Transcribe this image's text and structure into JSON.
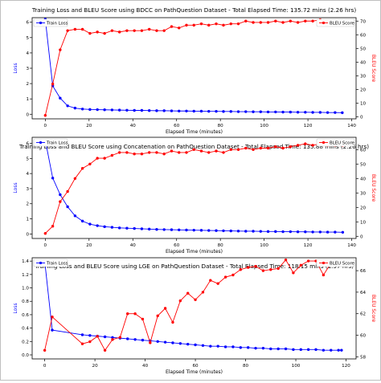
{
  "figure": {
    "frame_color": "#bfbfbf"
  },
  "colors": {
    "loss": "#0000ff",
    "bleu": "#ff0000",
    "axis": "#000000"
  },
  "chart_data": [
    {
      "type": "line",
      "title": "Training Loss and BLEU Score using BDCC on PathQuestion Dataset - Total Elapsed Time: 135.72 mins (2.26 hrs)",
      "xlabel": "Elapsed Time (minutes)",
      "ylabel_left": "Loss",
      "ylabel_right": "BLEU Score",
      "xlim": [
        -6,
        142
      ],
      "ylim_left": [
        -0.3,
        6.3
      ],
      "ylim_right": [
        -1.5,
        72.5
      ],
      "xticks": [
        0,
        20,
        40,
        60,
        80,
        100,
        120,
        140
      ],
      "yticks_left": [
        0,
        1,
        2,
        3,
        4,
        5,
        6
      ],
      "yticks_right": [
        0,
        10,
        20,
        30,
        40,
        50,
        60,
        70
      ],
      "legend": {
        "left": {
          "label": "Train Loss",
          "position": "upper-left"
        },
        "right": {
          "label": "BLEU Score",
          "position": "upper-right"
        }
      },
      "series": [
        {
          "name": "Train Loss",
          "axis": "left",
          "color": "#0000ff",
          "x": [
            0,
            3.4,
            6.8,
            10.2,
            13.6,
            17,
            20.4,
            23.8,
            27.1,
            30.5,
            33.9,
            37.3,
            40.7,
            44.1,
            47.5,
            50.9,
            54.3,
            57.7,
            61.1,
            64.5,
            67.9,
            71.3,
            74.7,
            78.1,
            81.4,
            84.8,
            88.2,
            91.6,
            95,
            98.4,
            101.8,
            105.2,
            108.6,
            112,
            115.4,
            118.8,
            122.2,
            125.6,
            129,
            132.4,
            135.7
          ],
          "y": [
            6.2,
            1.85,
            1.05,
            0.55,
            0.4,
            0.34,
            0.31,
            0.3,
            0.29,
            0.28,
            0.27,
            0.26,
            0.25,
            0.25,
            0.24,
            0.23,
            0.23,
            0.22,
            0.21,
            0.21,
            0.2,
            0.2,
            0.19,
            0.19,
            0.18,
            0.18,
            0.17,
            0.17,
            0.16,
            0.16,
            0.15,
            0.15,
            0.14,
            0.14,
            0.13,
            0.13,
            0.12,
            0.12,
            0.11,
            0.11,
            0.1
          ]
        },
        {
          "name": "BLEU Score",
          "axis": "right",
          "color": "#ff0000",
          "x": [
            0,
            3.4,
            6.8,
            10.2,
            13.6,
            17,
            20.4,
            23.8,
            27.1,
            30.5,
            33.9,
            37.3,
            40.7,
            44.1,
            47.5,
            50.9,
            54.3,
            57.7,
            61.1,
            64.5,
            67.9,
            71.3,
            74.7,
            78.1,
            81.4,
            84.8,
            88.2,
            91.6,
            95,
            98.4,
            101.8,
            105.2,
            108.6,
            112,
            115.4,
            118.8,
            122.2,
            125.6,
            129,
            132.4,
            135.7
          ],
          "y": [
            1,
            24,
            49,
            63,
            64,
            64,
            61,
            62,
            61,
            63,
            62,
            63,
            63,
            63,
            64,
            63,
            63,
            66,
            65,
            67,
            67,
            68,
            67,
            68,
            67,
            68,
            68,
            70,
            69,
            69,
            69,
            70,
            69,
            70,
            69,
            70,
            70,
            71,
            70,
            70,
            70
          ]
        }
      ]
    },
    {
      "type": "line",
      "title": "Training Loss and BLEU Score using Concatenation on PathQuestion Dataset - Total Elapsed Time: 135.88 mins (2.26 hrs)",
      "xlabel": "Elapsed Time (minutes)",
      "ylabel_left": "Loss",
      "ylabel_right": "BLEU Score",
      "xlim": [
        -6,
        142
      ],
      "ylim_left": [
        -0.3,
        6.4
      ],
      "ylim_right": [
        -1.5,
        68.5
      ],
      "xticks": [
        0,
        20,
        40,
        60,
        80,
        100,
        120,
        140
      ],
      "yticks_left": [
        0,
        1,
        2,
        3,
        4,
        5,
        6
      ],
      "yticks_right": [
        0,
        10,
        20,
        30,
        40,
        50,
        60
      ],
      "legend": {
        "left": {
          "label": "Train Loss",
          "position": "upper-left"
        },
        "right": {
          "label": "BLEU Score",
          "position": "upper-right"
        }
      },
      "series": [
        {
          "name": "Train Loss",
          "axis": "left",
          "color": "#0000ff",
          "x": [
            0,
            3.4,
            6.8,
            10.2,
            13.6,
            17,
            20.4,
            23.8,
            27.1,
            30.5,
            33.9,
            37.3,
            40.7,
            44.1,
            47.5,
            50.9,
            54.3,
            57.7,
            61.1,
            64.5,
            67.9,
            71.3,
            74.7,
            78.1,
            81.4,
            84.8,
            88.2,
            91.6,
            95,
            98.4,
            101.8,
            105.2,
            108.6,
            112,
            115.4,
            118.8,
            122.2,
            125.6,
            129,
            132.4,
            135.9
          ],
          "y": [
            6.2,
            3.7,
            2.6,
            1.8,
            1.2,
            0.85,
            0.65,
            0.55,
            0.48,
            0.44,
            0.4,
            0.38,
            0.36,
            0.34,
            0.32,
            0.3,
            0.29,
            0.28,
            0.27,
            0.26,
            0.25,
            0.24,
            0.23,
            0.22,
            0.21,
            0.2,
            0.19,
            0.18,
            0.18,
            0.17,
            0.16,
            0.16,
            0.15,
            0.15,
            0.14,
            0.14,
            0.13,
            0.13,
            0.12,
            0.12,
            0.11
          ]
        },
        {
          "name": "BLEU Score",
          "axis": "right",
          "color": "#ff0000",
          "x": [
            0,
            3.4,
            6.8,
            10.2,
            13.6,
            17,
            20.4,
            23.8,
            27.1,
            30.5,
            33.9,
            37.3,
            40.7,
            44.1,
            47.5,
            50.9,
            54.3,
            57.7,
            61.1,
            64.5,
            67.9,
            71.3,
            74.7,
            78.1,
            81.4,
            84.8,
            88.2,
            91.6,
            95,
            98.4,
            101.8,
            105.2,
            108.6,
            112,
            115.4,
            118.8,
            122.2,
            125.6,
            129,
            132.4,
            135.9
          ],
          "y": [
            2,
            7,
            24,
            31,
            40,
            47,
            50,
            54,
            54,
            56,
            58,
            58,
            57,
            57,
            58,
            58,
            57,
            59,
            58,
            58,
            60,
            59,
            58,
            59,
            58,
            60,
            60,
            61,
            60,
            61,
            61,
            62,
            61,
            62,
            63,
            64,
            63,
            64,
            63,
            63,
            63
          ]
        }
      ]
    },
    {
      "type": "line",
      "title": "Training Loss and BLEU Score using LGE on PathQuestion Dataset - Total Elapsed Time: 118.15 mins (1.97 hrs)",
      "xlabel": "Elapsed Time (minutes)",
      "ylabel_left": "Loss",
      "ylabel_right": "BLEU Score",
      "xlim": [
        -5,
        124
      ],
      "ylim_left": [
        -0.06,
        1.45
      ],
      "ylim_right": [
        57.8,
        67.2
      ],
      "xticks": [
        0,
        20,
        40,
        60,
        80,
        100,
        120
      ],
      "yticks_left": [
        0.0,
        0.2,
        0.4,
        0.6,
        0.8,
        1.0,
        1.2,
        1.4
      ],
      "yticks_right": [
        58,
        60,
        62,
        64,
        66
      ],
      "legend": {
        "left": {
          "label": "Train Loss",
          "position": "upper-left"
        },
        "right": {
          "label": "BLEU Score",
          "position": "upper-right"
        }
      },
      "series": [
        {
          "name": "Train Loss",
          "axis": "left",
          "color": "#0000ff",
          "x": [
            0,
            3,
            15,
            18,
            21,
            24,
            27,
            30,
            33,
            36,
            39,
            42,
            45,
            48,
            51,
            54,
            57,
            60,
            63,
            66,
            69,
            72,
            75,
            78,
            81,
            84,
            87,
            90,
            93,
            96,
            99,
            102,
            105,
            108,
            111,
            114,
            117,
            118.2
          ],
          "y": [
            1.4,
            0.37,
            0.3,
            0.29,
            0.28,
            0.27,
            0.26,
            0.25,
            0.24,
            0.23,
            0.22,
            0.21,
            0.2,
            0.19,
            0.18,
            0.17,
            0.16,
            0.15,
            0.14,
            0.13,
            0.13,
            0.12,
            0.12,
            0.11,
            0.11,
            0.1,
            0.1,
            0.09,
            0.09,
            0.09,
            0.08,
            0.08,
            0.08,
            0.08,
            0.07,
            0.07,
            0.07,
            0.07
          ]
        },
        {
          "name": "BLEU Score",
          "axis": "right",
          "color": "#ff0000",
          "x": [
            0,
            3,
            15,
            18,
            21,
            24,
            27,
            30,
            33,
            36,
            39,
            42,
            45,
            48,
            51,
            54,
            57,
            60,
            63,
            66,
            69,
            72,
            75,
            78,
            81,
            84,
            87,
            90,
            93,
            96,
            99,
            102,
            105,
            108,
            111,
            114,
            117,
            118.2
          ],
          "y": [
            58.6,
            61.7,
            59.2,
            59.4,
            59.9,
            58.6,
            59.6,
            59.8,
            62.0,
            62.0,
            61.5,
            59.3,
            61.8,
            62.5,
            61.2,
            63.2,
            63.9,
            63.3,
            64.0,
            65.1,
            64.8,
            65.4,
            65.6,
            66.1,
            66.3,
            66.4,
            66.0,
            66.1,
            66.2,
            67.0,
            65.8,
            66.5,
            66.9,
            66.9,
            65.6,
            66.7,
            66.9,
            66.9
          ]
        }
      ]
    }
  ]
}
